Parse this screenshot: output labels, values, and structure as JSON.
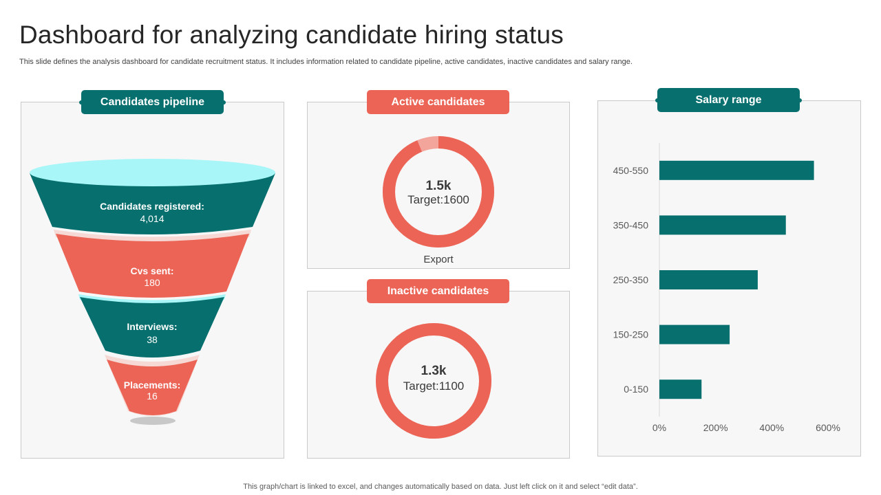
{
  "header": {
    "title": "Dashboard for analyzing candidate hiring status",
    "subtitle": "This slide defines the analysis dashboard for candidate recruitment status. It includes information related to candidate pipeline, active candidates, inactive candidates and salary range."
  },
  "footer": "This graph/chart is linked to excel,  and changes automatically based on data. Just left click on it and select “edit data”.",
  "colors": {
    "teal": "#07706f",
    "red": "#eb6456",
    "light_red": "#f3a49b",
    "cyan": "#a8f6f8"
  },
  "pipeline": {
    "label": "Candidates pipeline",
    "stages": [
      {
        "name": "Candidates registered:",
        "value": "4,014"
      },
      {
        "name": "Cvs sent:",
        "value": "180"
      },
      {
        "name": "Interviews:",
        "value": "38"
      },
      {
        "name": "Placements:",
        "value": "16"
      }
    ]
  },
  "active": {
    "label": "Active candidates",
    "value": "1.5k",
    "target": "Target:1600",
    "caption": "Export",
    "fraction": 0.9375
  },
  "inactive": {
    "label": "Inactive candidates",
    "value": "1.3k",
    "target": "Target:1100",
    "fraction": 1.0
  },
  "chart_data": {
    "type": "bar",
    "orientation": "horizontal",
    "title": "Salary range",
    "categories": [
      "450-550",
      "350-450",
      "250-350",
      "150-250",
      "0-150"
    ],
    "values": [
      550,
      450,
      350,
      250,
      150
    ],
    "xlim": [
      0,
      600
    ],
    "xticks": [
      "0%",
      "200%",
      "400%",
      "600%"
    ],
    "grid": false
  }
}
